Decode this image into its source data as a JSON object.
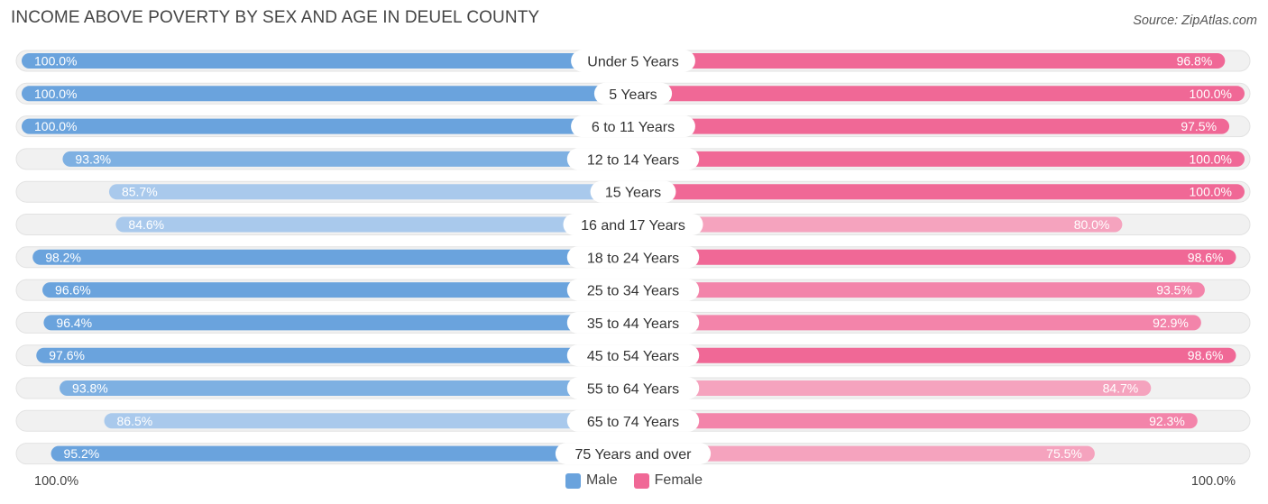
{
  "title": "INCOME ABOVE POVERTY BY SEX AND AGE IN DEUEL COUNTY",
  "source": "Source: ZipAtlas.com",
  "colors": {
    "male": "#6aa3dd",
    "male_light": "#a9c9ec",
    "female": "#f06896",
    "female_light": "#f5a3be"
  },
  "legend": {
    "male_label": "Male",
    "female_label": "Female"
  },
  "axis": {
    "left_label": "100.0%",
    "right_label": "100.0%"
  },
  "chart_data": {
    "type": "bar",
    "orientation": "horizontal-diverging",
    "title": "INCOME ABOVE POVERTY BY SEX AND AGE IN DEUEL COUNTY",
    "xlim": [
      0,
      100
    ],
    "categories": [
      "Under 5 Years",
      "5 Years",
      "6 to 11 Years",
      "12 to 14 Years",
      "15 Years",
      "16 and 17 Years",
      "18 to 24 Years",
      "25 to 34 Years",
      "35 to 44 Years",
      "45 to 54 Years",
      "55 to 64 Years",
      "65 to 74 Years",
      "75 Years and over"
    ],
    "series": [
      {
        "name": "Male",
        "values": [
          100.0,
          100.0,
          100.0,
          93.3,
          85.7,
          84.6,
          98.2,
          96.6,
          96.4,
          97.6,
          93.8,
          86.5,
          95.2
        ],
        "labels": [
          "100.0%",
          "100.0%",
          "100.0%",
          "93.3%",
          "85.7%",
          "84.6%",
          "98.2%",
          "96.6%",
          "96.4%",
          "97.6%",
          "93.8%",
          "86.5%",
          "95.2%"
        ]
      },
      {
        "name": "Female",
        "values": [
          96.8,
          100.0,
          97.5,
          100.0,
          100.0,
          80.0,
          98.6,
          93.5,
          92.9,
          98.6,
          84.7,
          92.3,
          75.5
        ],
        "labels": [
          "96.8%",
          "100.0%",
          "97.5%",
          "100.0%",
          "100.0%",
          "80.0%",
          "98.6%",
          "93.5%",
          "92.9%",
          "98.6%",
          "84.7%",
          "92.3%",
          "75.5%"
        ]
      }
    ]
  }
}
